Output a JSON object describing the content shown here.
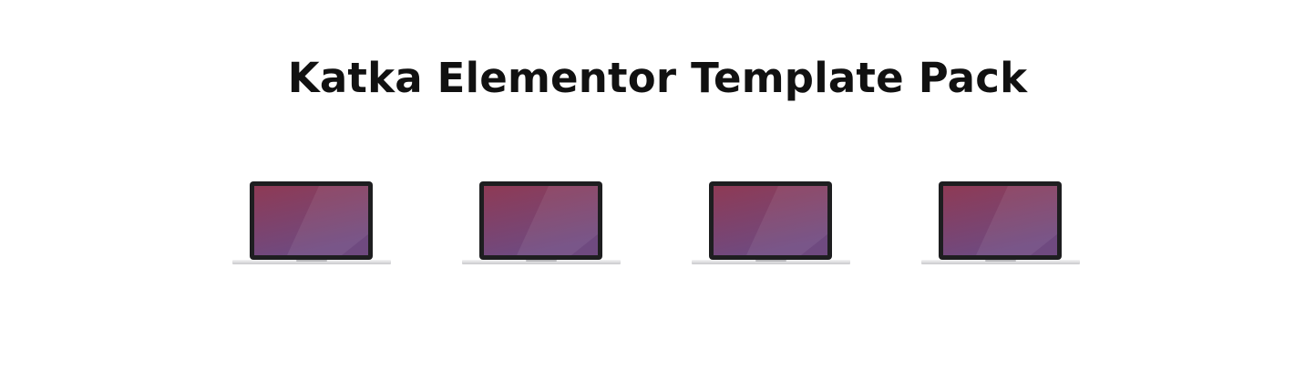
{
  "page": {
    "title": "Katka Elementor Template Pack"
  },
  "laptops": [
    {
      "name": "laptop-mockup-1",
      "icon": "laptop-icon"
    },
    {
      "name": "laptop-mockup-2",
      "icon": "laptop-icon"
    },
    {
      "name": "laptop-mockup-3",
      "icon": "laptop-icon"
    },
    {
      "name": "laptop-mockup-4",
      "icon": "laptop-icon"
    }
  ],
  "colors": {
    "screen_top": "#8e3a55",
    "screen_bottom": "#6f4a80",
    "bezel": "#222222",
    "base": "#e6e6e8",
    "title_text": "#111111"
  }
}
